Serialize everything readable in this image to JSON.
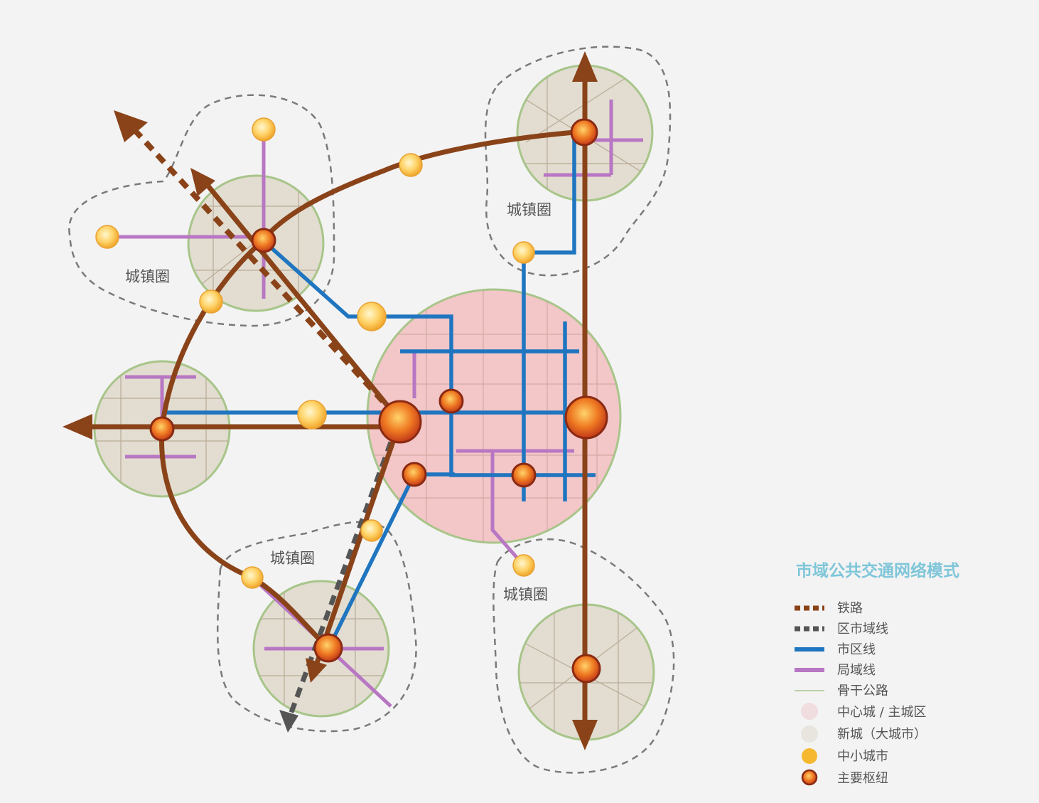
{
  "zones": [
    {
      "id": "northwest",
      "label": "城镇圈"
    },
    {
      "id": "northeast",
      "label": "城镇圈"
    },
    {
      "id": "southwest",
      "label": "城镇圈"
    },
    {
      "id": "southeast",
      "label": "城镇圈"
    }
  ],
  "legend": {
    "title": "市域公共交通网络模式",
    "items": [
      {
        "key": "railway",
        "label": "铁路",
        "color": "#8a4319"
      },
      {
        "key": "regional-line",
        "label": "区市域线",
        "color": "#555555"
      },
      {
        "key": "urban-line",
        "label": "市区线",
        "color": "#1f75bf"
      },
      {
        "key": "local-line",
        "label": "局域线",
        "color": "#b877c3"
      },
      {
        "key": "arterial-road",
        "label": "骨干公路",
        "color": "#a8c58a"
      },
      {
        "key": "central-city",
        "label": "中心城 / 主城区",
        "color": "#f3c6c8"
      },
      {
        "key": "new-town",
        "label": "新城（大城市）",
        "color": "#e0ddd5"
      },
      {
        "key": "small-city",
        "label": "中小城市",
        "color": "#f5b82e"
      },
      {
        "key": "main-hub",
        "label": "主要枢纽",
        "color": "#e0561c"
      }
    ]
  },
  "colors": {
    "railway": "#8a4319",
    "urban_line": "#1f75bf",
    "local_line": "#b877c3",
    "road": "#b9ab97",
    "central_fill": "#f3c6c8",
    "newtown_fill": "#e2ddd0",
    "circle_border": "#a8c58a",
    "dashed_boundary": "#7a7a7a",
    "small_city": "#f5b82e",
    "hub": "#e0561c"
  }
}
